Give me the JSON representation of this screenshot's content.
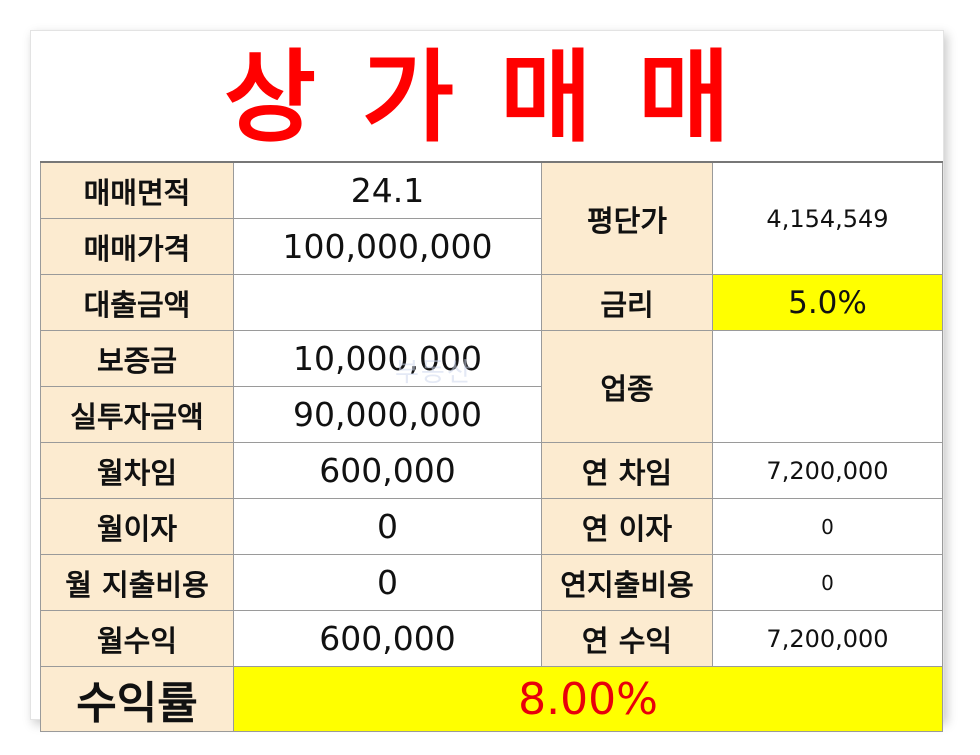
{
  "title": "상가매매",
  "watermark": "부동산",
  "rows": {
    "area_label": "매매면적",
    "area_value": "24.1",
    "price_label": "매매가격",
    "price_value": "100,000,000",
    "unit_price_label": "평단가",
    "unit_price_value": "4,154,549",
    "loan_label": "대출금액",
    "loan_value": "",
    "rate_label": "금리",
    "rate_value": "5.0%",
    "deposit_label": "보증금",
    "deposit_value": "10,000,000",
    "business_label": "업종",
    "business_value": "",
    "invest_label": "실투자금액",
    "invest_value": "90,000,000",
    "monthly_rent_label": "월차임",
    "monthly_rent_value": "600,000",
    "annual_rent_label": "연 차임",
    "annual_rent_value": "7,200,000",
    "monthly_interest_label": "월이자",
    "monthly_interest_value": "0",
    "annual_interest_label": "연 이자",
    "annual_interest_value": "0",
    "monthly_expense_label": "월 지출비용",
    "monthly_expense_value": "0",
    "annual_expense_label": "연지출비용",
    "annual_expense_value": "0",
    "monthly_income_label": "월수익",
    "monthly_income_value": "600,000",
    "annual_income_label": "연 수익",
    "annual_income_value": "7,200,000",
    "yield_label": "수익률",
    "yield_value": "8.00%"
  },
  "colors": {
    "title": "#ff0000",
    "label_bg": "#fcebd0",
    "highlight": "#ffff00",
    "yield_text": "#e8000b"
  }
}
